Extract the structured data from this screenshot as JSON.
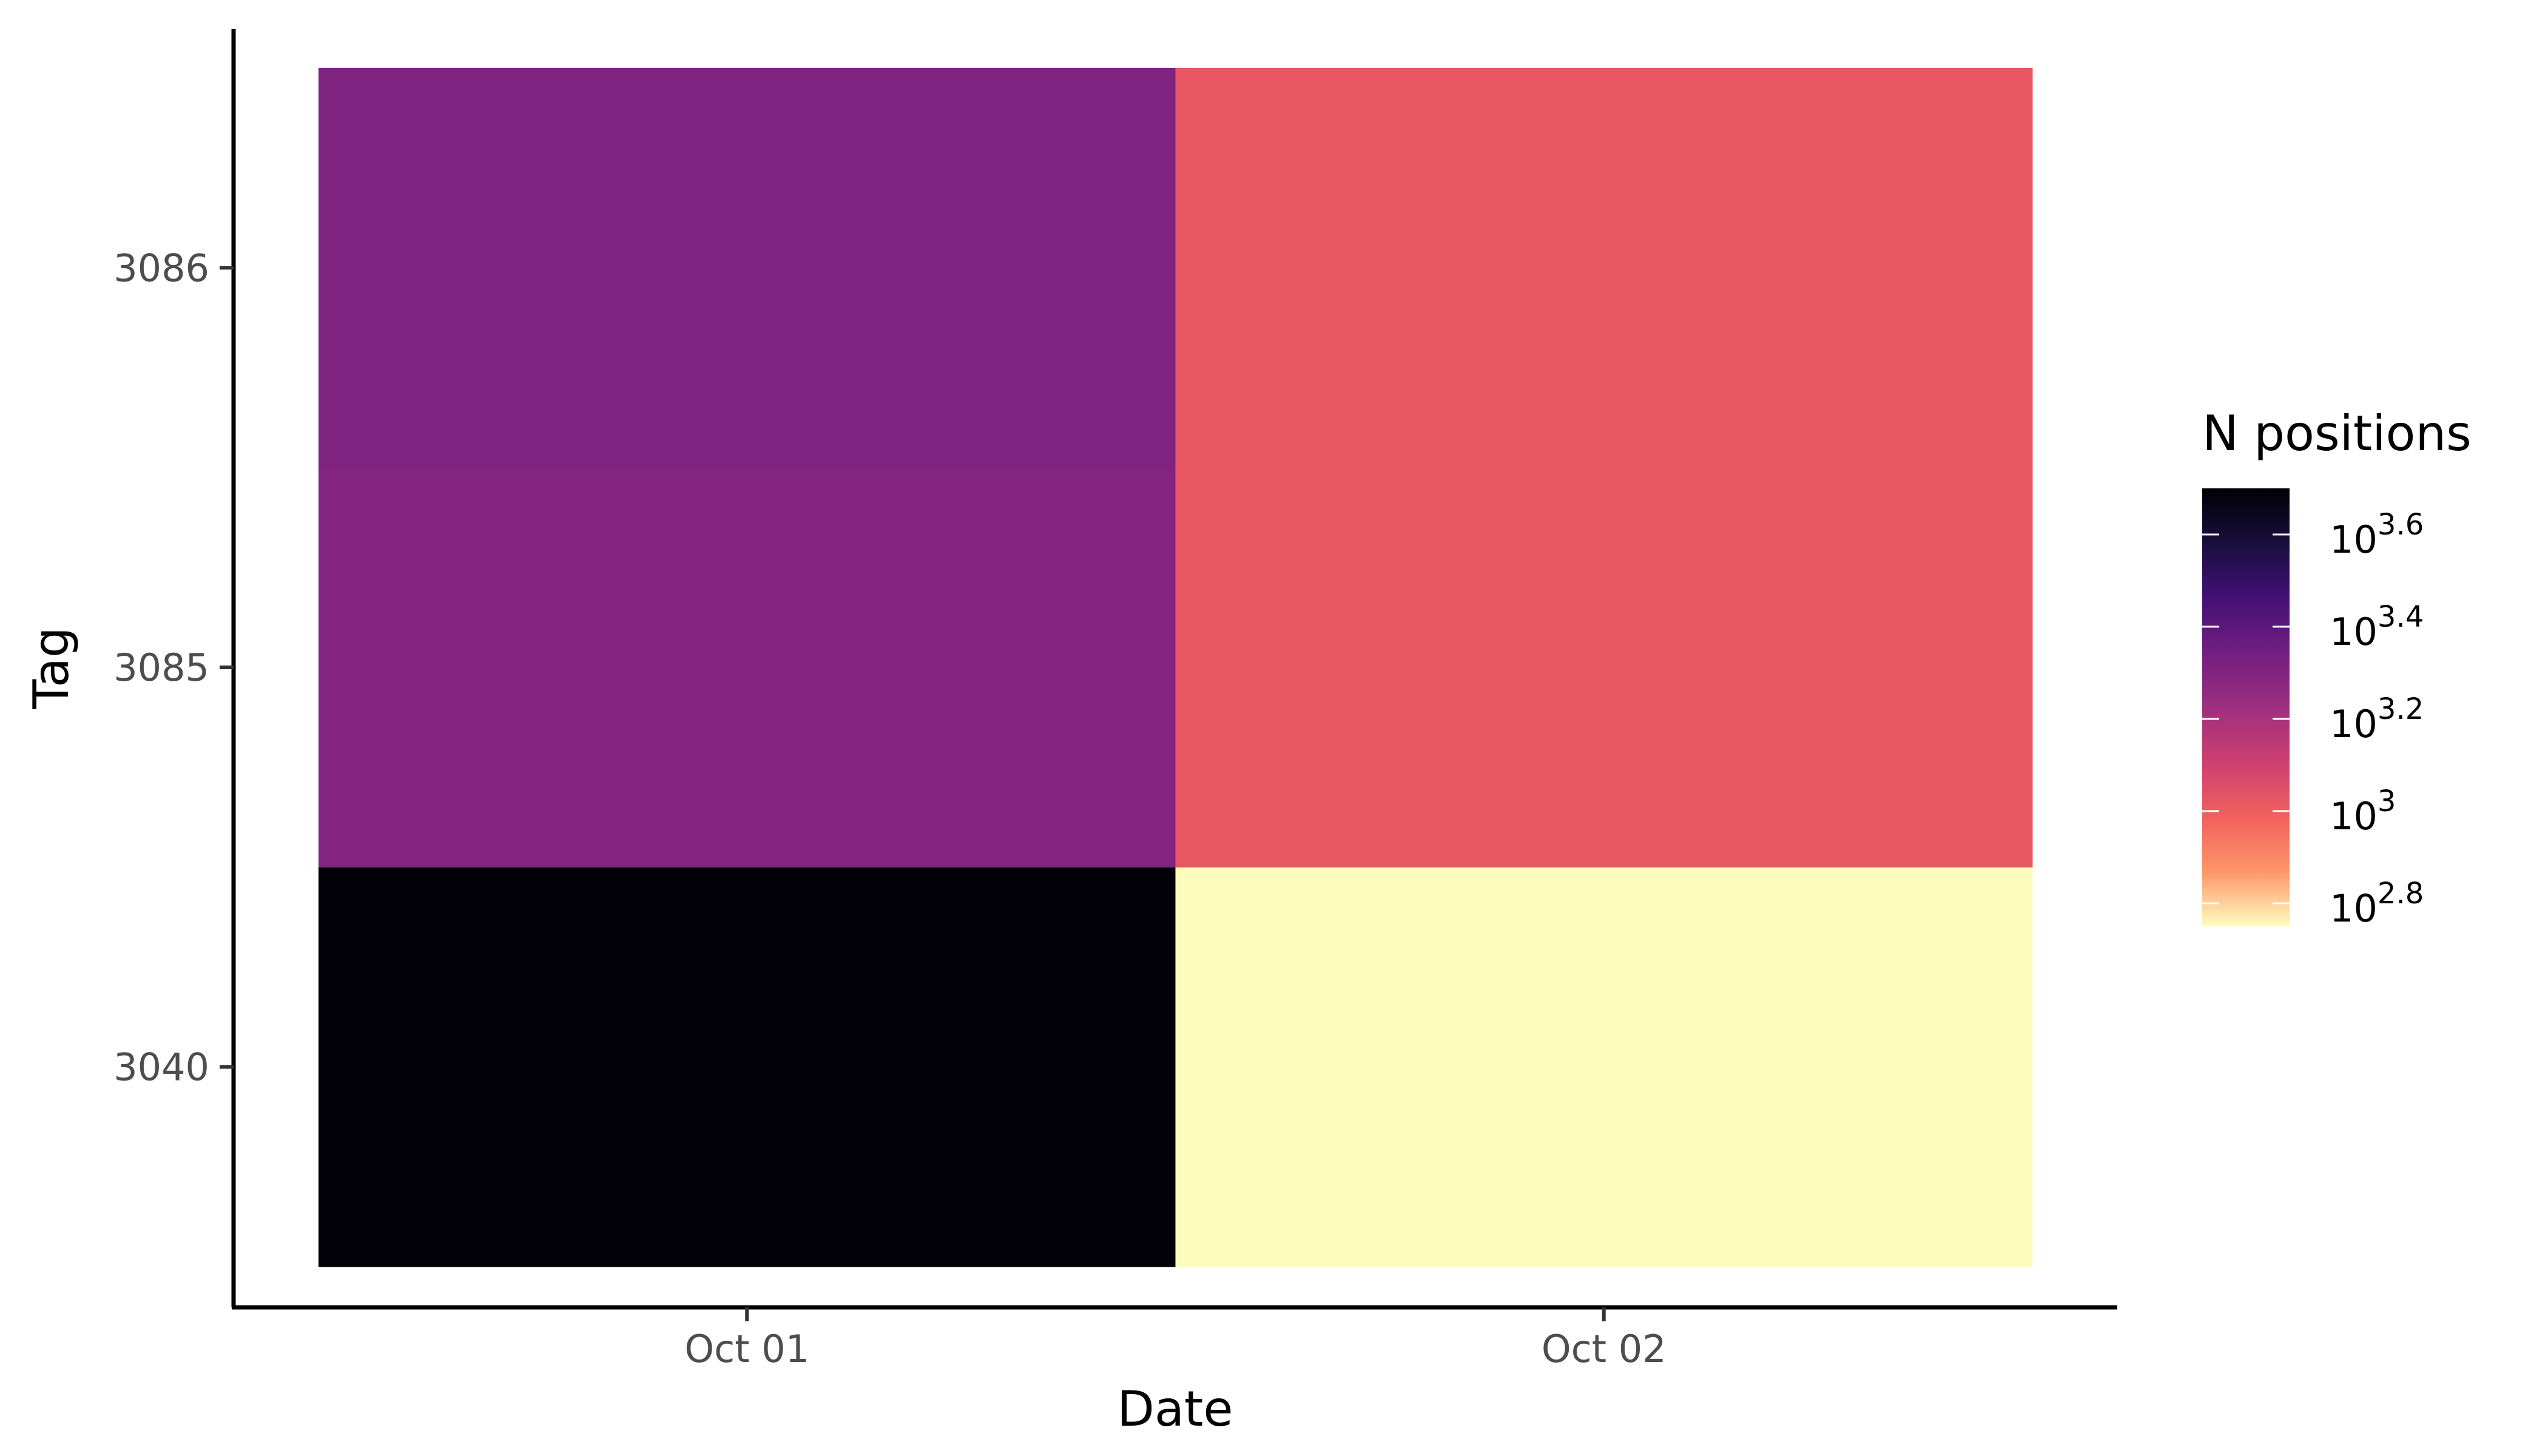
{
  "chart_data": {
    "type": "heatmap",
    "title": "",
    "xlabel": "Date",
    "ylabel": "Tag",
    "x_categories": [
      "Oct 01",
      "Oct 02"
    ],
    "y_categories": [
      "3040",
      "3085",
      "3086"
    ],
    "cells": [
      {
        "x": "Oct 01",
        "y": "3040",
        "log10_value": 3.7,
        "color": "#020108"
      },
      {
        "x": "Oct 01",
        "y": "3085",
        "log10_value": 3.34,
        "color": "#842480"
      },
      {
        "x": "Oct 01",
        "y": "3086",
        "log10_value": 3.36,
        "color": "#7e2480"
      },
      {
        "x": "Oct 02",
        "y": "3040",
        "log10_value": 2.75,
        "color": "#fcfcbd"
      },
      {
        "x": "Oct 02",
        "y": "3085",
        "log10_value": 3.12,
        "color": "#e85662"
      },
      {
        "x": "Oct 02",
        "y": "3086",
        "log10_value": 3.12,
        "color": "#e85662"
      }
    ],
    "scale": "log10",
    "palette": "magma",
    "grid": false,
    "legend": {
      "title": "N positions",
      "placement": "right",
      "range_log10": [
        2.75,
        3.7
      ],
      "ticks": [
        {
          "exponent": "3.6",
          "log10_value": 3.6
        },
        {
          "exponent": "3.4",
          "log10_value": 3.4
        },
        {
          "exponent": "3.2",
          "log10_value": 3.2
        },
        {
          "exponent": "3",
          "log10_value": 3.0
        },
        {
          "exponent": "2.8",
          "log10_value": 2.8
        }
      ],
      "base": "10",
      "colors": [
        "#fcfdbf",
        "#fd9668",
        "#f1605d",
        "#cd4071",
        "#9e2f7f",
        "#721f81",
        "#440f76",
        "#180f3d",
        "#000004"
      ]
    }
  }
}
